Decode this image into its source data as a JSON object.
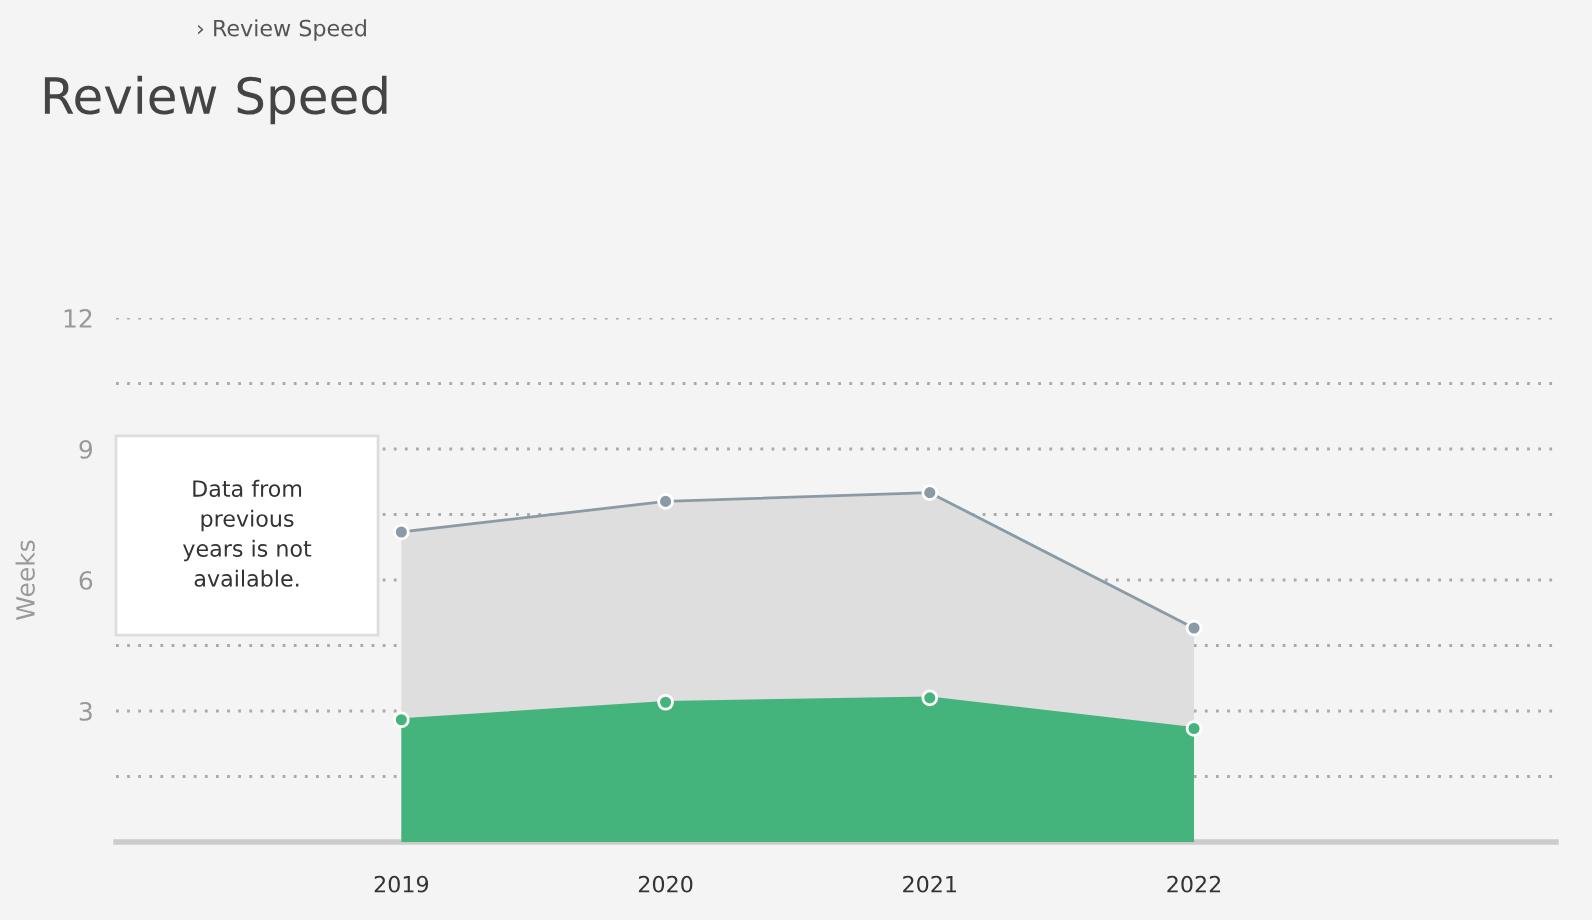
{
  "chart_data": {
    "type": "area",
    "title": "Review Speed",
    "ylabel": "Weeks",
    "categories": [
      "2019",
      "2020",
      "2021",
      "2022"
    ],
    "series": [
      {
        "color": "#dedede",
        "values": [
          7.1,
          7.8,
          8.0,
          4.9
        ]
      },
      {
        "color": "#45b37c",
        "values": [
          2.8,
          3.2,
          3.3,
          2.6
        ]
      }
    ],
    "ylim": [
      0,
      12
    ],
    "yticks": [
      {
        "value": 1.5,
        "label": null
      },
      3,
      {
        "value": 4.5,
        "label": null
      },
      6,
      {
        "value": 7.5,
        "label": null
      },
      9,
      {
        "value": 10.5,
        "label": null
      },
      12
    ],
    "grid": "y",
    "marker": "circle",
    "legend": false,
    "annotations": [
      "› Review Speed",
      "Data from\nprevious\nyears is not\navailable."
    ]
  }
}
